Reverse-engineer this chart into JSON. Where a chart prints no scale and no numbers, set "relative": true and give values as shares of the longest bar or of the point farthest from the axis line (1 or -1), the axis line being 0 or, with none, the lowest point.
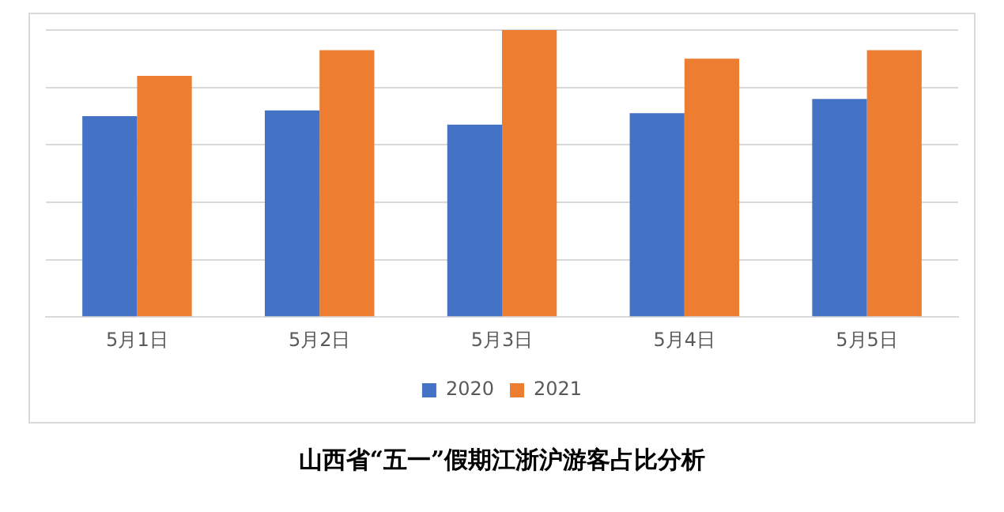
{
  "chart_data": {
    "type": "bar",
    "title": "山西省“五一”假期江浙沪游客占比分析",
    "relative": true,
    "categories": [
      "5月1日",
      "5月2日",
      "5月3日",
      "5月4日",
      "5月5日"
    ],
    "series": [
      {
        "name": "2020",
        "color": "#4472c4",
        "values": [
          0.7,
          0.72,
          0.67,
          0.71,
          0.76
        ]
      },
      {
        "name": "2021",
        "color": "#ed7d31",
        "values": [
          0.84,
          0.93,
          1,
          0.9,
          0.93
        ]
      }
    ],
    "grid": "y",
    "legend": "bottom"
  }
}
